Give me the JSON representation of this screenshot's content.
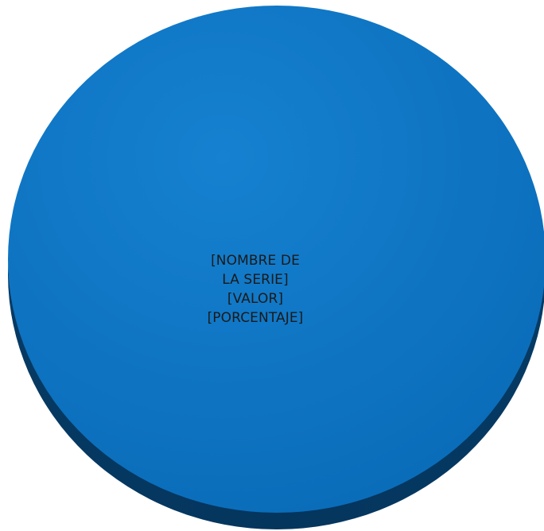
{
  "chart_data": {
    "type": "pie",
    "title": "",
    "series": [
      {
        "values": [
          100
        ]
      }
    ],
    "colors": {
      "slice_top": "#0a72c2",
      "slice_side": "#063a63",
      "slice_highlight": "#1581d0",
      "label": "#1a1a1a"
    },
    "labels": {
      "line1": "[NOMBRE DE",
      "line2": "LA SERIE]",
      "line3": "[VALOR]",
      "line4": "[PORCENTAJE]"
    },
    "style": "3d",
    "legend": "none"
  }
}
